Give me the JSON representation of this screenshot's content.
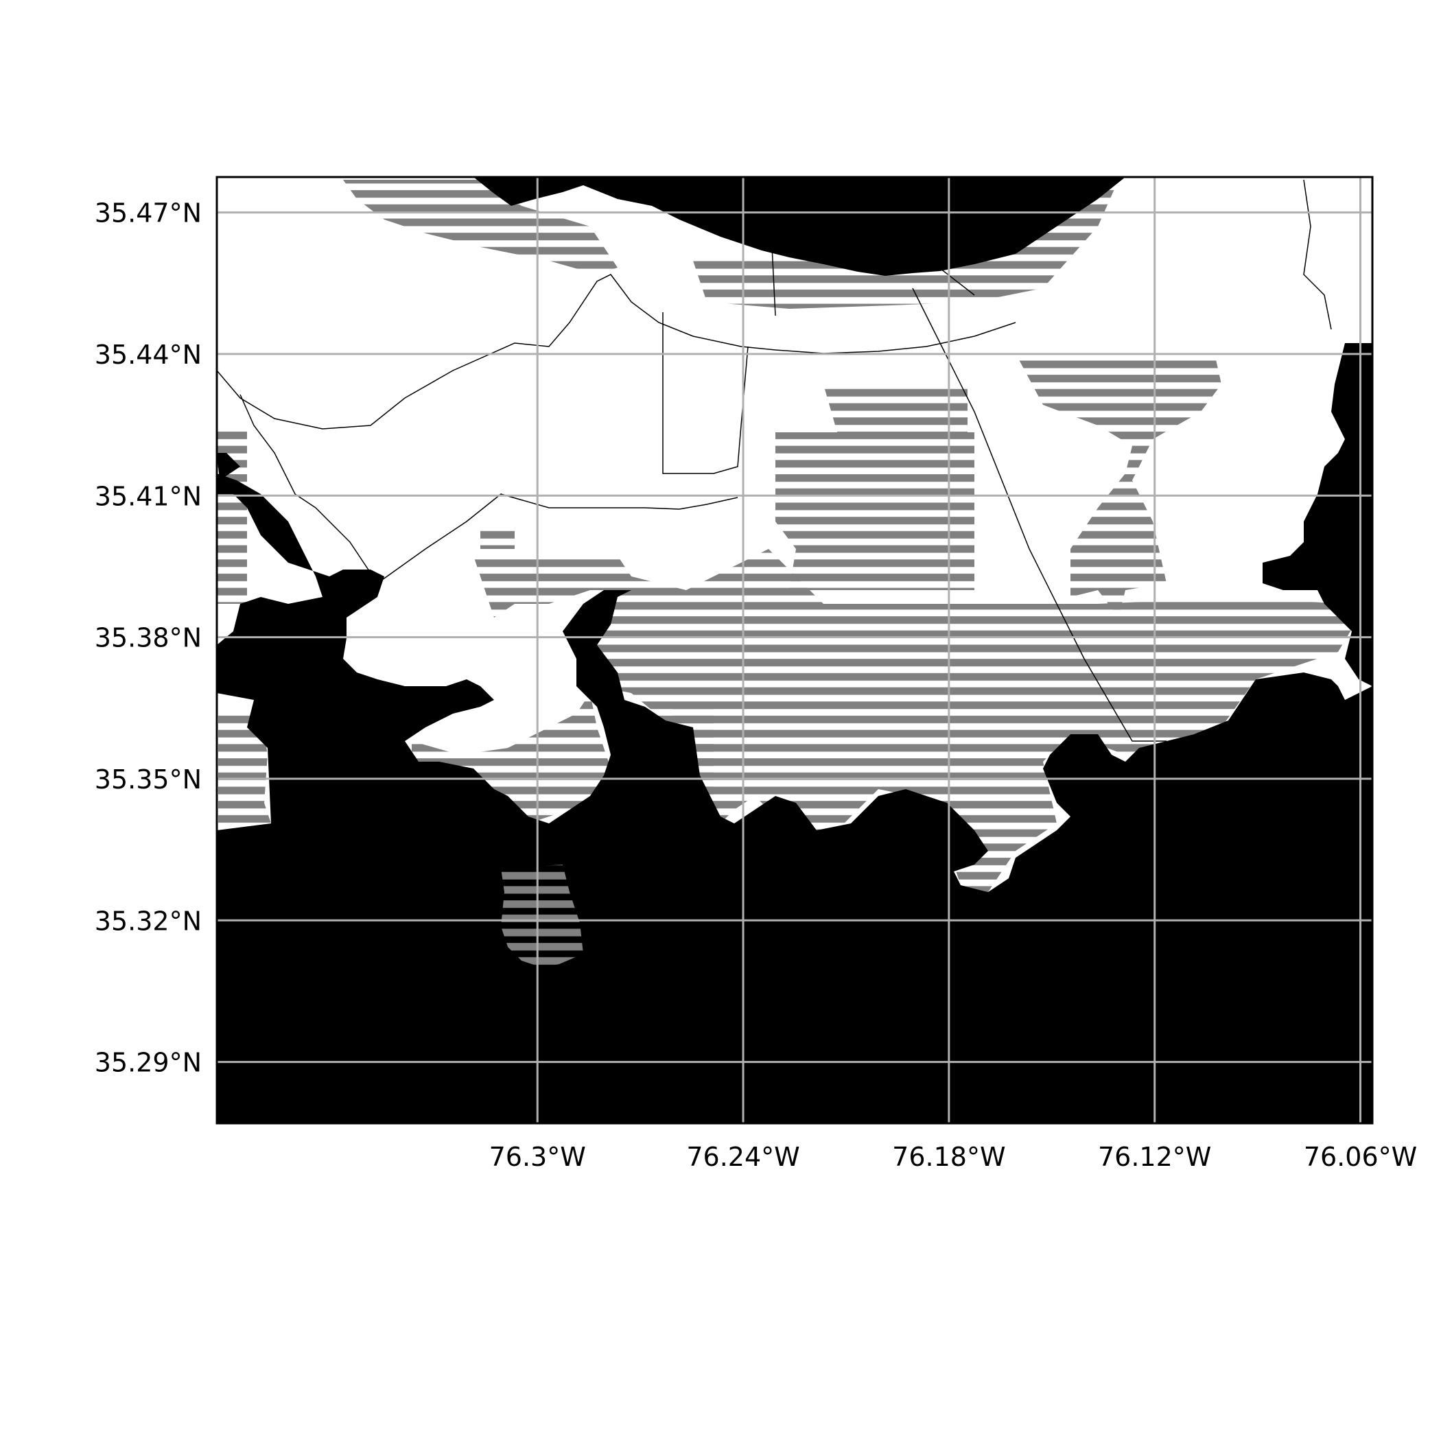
{
  "map": {
    "type": "map",
    "projection": "plate-carree",
    "lon_range": [
      -76.3935,
      -76.0565
    ],
    "lat_range": [
      35.277,
      35.4775
    ],
    "x_ticks": [
      {
        "value": -76.3,
        "label": "76.3°W"
      },
      {
        "value": -76.24,
        "label": "76.24°W"
      },
      {
        "value": -76.18,
        "label": "76.18°W"
      },
      {
        "value": -76.12,
        "label": "76.12°W"
      },
      {
        "value": -76.06,
        "label": "76.06°W"
      }
    ],
    "y_ticks": [
      {
        "value": 35.47,
        "label": "35.47°N"
      },
      {
        "value": 35.44,
        "label": "35.44°N"
      },
      {
        "value": 35.41,
        "label": "35.41°N"
      },
      {
        "value": 35.38,
        "label": "35.38°N"
      },
      {
        "value": 35.35,
        "label": "35.35°N"
      },
      {
        "value": 35.32,
        "label": "35.32°N"
      },
      {
        "value": 35.29,
        "label": "35.29°N"
      }
    ],
    "grid": true,
    "colors": {
      "water": "#000000",
      "land": "#ffffff",
      "wetland_hatch": "#808080",
      "grid": "#b0b0b0",
      "frame": "#000000"
    }
  }
}
